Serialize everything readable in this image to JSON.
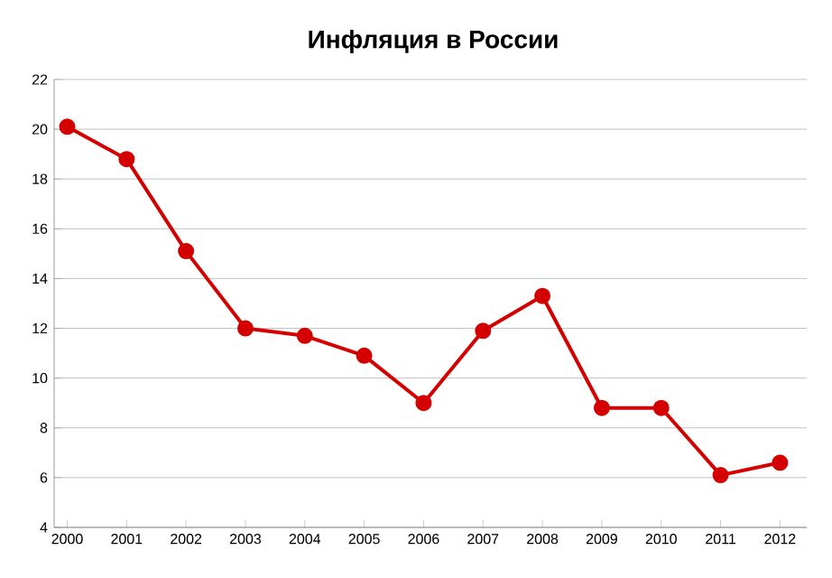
{
  "chart_data": {
    "type": "line",
    "title": "Инфляция в России",
    "categories": [
      "2000",
      "2001",
      "2002",
      "2003",
      "2004",
      "2005",
      "2006",
      "2007",
      "2008",
      "2009",
      "2010",
      "2011",
      "2012"
    ],
    "series": [
      {
        "color": "#d40000",
        "values": [
          20.1,
          18.8,
          15.1,
          12.0,
          11.7,
          10.9,
          9.0,
          11.9,
          13.3,
          8.8,
          8.8,
          6.1,
          6.6
        ]
      }
    ],
    "ylim": [
      4,
      22
    ],
    "yticks": [
      4,
      6,
      8,
      10,
      12,
      14,
      16,
      18,
      20,
      22
    ],
    "grid": "y",
    "marker": "circle",
    "line_style": "solid"
  }
}
